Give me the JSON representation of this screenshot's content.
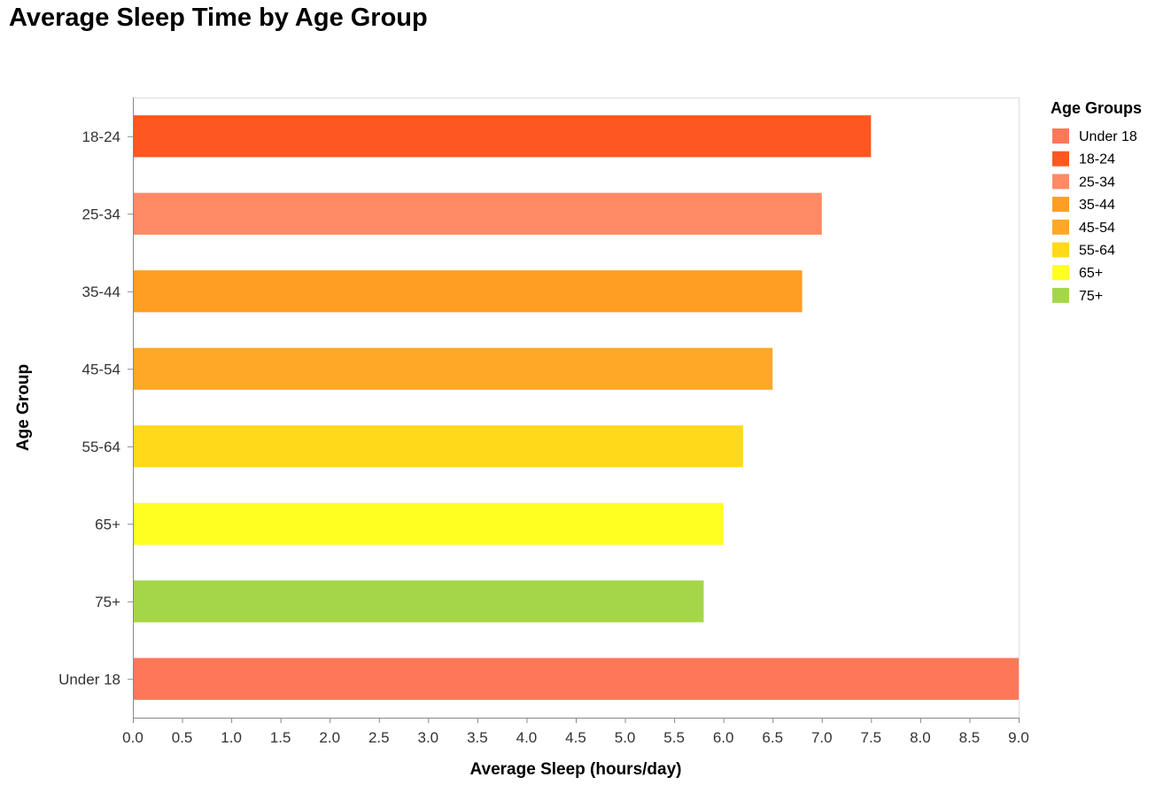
{
  "chart_data": {
    "type": "bar",
    "orientation": "horizontal",
    "title": "Average Sleep Time by Age Group",
    "xlabel": "Average Sleep (hours/day)",
    "ylabel": "Age Group",
    "xlim": [
      0,
      9
    ],
    "x_ticks": [
      "0.0",
      "0.5",
      "1.0",
      "1.5",
      "2.0",
      "2.5",
      "3.0",
      "3.5",
      "4.0",
      "4.5",
      "5.0",
      "5.5",
      "6.0",
      "6.5",
      "7.0",
      "7.5",
      "8.0",
      "8.5",
      "9.0"
    ],
    "grid": false,
    "categories": [
      "18-24",
      "25-34",
      "35-44",
      "45-54",
      "55-64",
      "65+",
      "75+",
      "Under 18"
    ],
    "values": [
      7.5,
      7.0,
      6.8,
      6.5,
      6.2,
      6.0,
      5.8,
      9.0
    ],
    "colors": [
      "#FF5722",
      "#FF8A65",
      "#FF9E22",
      "#FFA726",
      "#FFD91A",
      "#FFFF22",
      "#A5D64A",
      "#FF7759"
    ],
    "legend": {
      "title": "Age Groups",
      "position": "right",
      "items": [
        {
          "label": "Under 18",
          "color": "#FF7759"
        },
        {
          "label": "18-24",
          "color": "#FF5722"
        },
        {
          "label": "25-34",
          "color": "#FF8A65"
        },
        {
          "label": "35-44",
          "color": "#FF9E22"
        },
        {
          "label": "45-54",
          "color": "#FFA726"
        },
        {
          "label": "55-64",
          "color": "#FFD91A"
        },
        {
          "label": "65+",
          "color": "#FFFF22"
        },
        {
          "label": "75+",
          "color": "#A5D64A"
        }
      ]
    }
  }
}
